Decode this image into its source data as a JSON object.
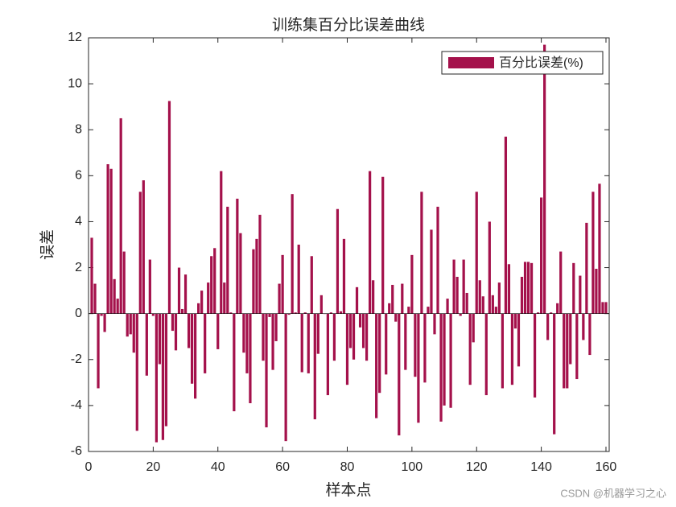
{
  "chart_data": {
    "type": "bar",
    "title": "训练集百分比误差曲线",
    "x_label": "样本点",
    "y_label": "误差",
    "watermark": "CSDN @机器学习之心",
    "series": [
      {
        "name": "百分比误差(%)",
        "color": "#a4114b",
        "values": [
          3.3,
          1.3,
          -3.25,
          -0.1,
          -0.8,
          6.5,
          6.3,
          1.5,
          0.65,
          8.5,
          2.7,
          -1.0,
          -0.9,
          -1.7,
          -5.1,
          5.3,
          5.8,
          -2.7,
          2.35,
          -0.1,
          -5.6,
          -2.2,
          -5.5,
          -4.9,
          9.25,
          -0.75,
          -1.6,
          2.0,
          0.2,
          1.7,
          -1.5,
          -3.05,
          -3.7,
          0.45,
          1.0,
          -2.6,
          1.35,
          2.5,
          2.85,
          -1.55,
          6.2,
          1.35,
          4.65,
          0.05,
          -4.25,
          5.0,
          3.5,
          -1.7,
          -2.6,
          -3.9,
          2.8,
          3.25,
          4.3,
          -2.05,
          -4.95,
          -0.15,
          -2.45,
          -1.2,
          1.3,
          2.55,
          -5.55,
          -0.05,
          5.2,
          0.05,
          3.0,
          -2.55,
          0.05,
          -2.6,
          2.5,
          -4.6,
          -1.75,
          0.8,
          0.0,
          -3.55,
          0.05,
          -2.05,
          4.55,
          0.1,
          3.25,
          -3.1,
          -1.5,
          -2.0,
          1.15,
          -0.6,
          -1.5,
          -2.05,
          6.2,
          1.45,
          -4.55,
          -3.45,
          5.95,
          -2.65,
          0.45,
          1.25,
          -0.35,
          -5.3,
          1.3,
          -2.45,
          0.3,
          2.55,
          -2.75,
          -4.75,
          5.3,
          -3.0,
          0.3,
          3.65,
          -0.9,
          4.65,
          -4.7,
          -4.0,
          0.65,
          -4.1,
          2.35,
          1.6,
          -0.1,
          2.35,
          0.9,
          -3.1,
          -1.25,
          5.3,
          1.45,
          0.75,
          -3.55,
          4.0,
          0.8,
          0.3,
          1.35,
          -3.25,
          7.7,
          2.15,
          -3.1,
          -0.65,
          -2.3,
          1.6,
          2.25,
          2.25,
          2.2,
          -3.65,
          0.05,
          5.05,
          11.7,
          -1.15,
          0.05,
          -5.25,
          0.45,
          2.7,
          -3.25,
          -3.25,
          -2.2,
          2.2,
          -2.85,
          1.65,
          -1.15,
          3.95,
          -1.8,
          5.3,
          1.95,
          5.65,
          0.5,
          0.5
        ]
      }
    ],
    "x": [
      1,
      2,
      3,
      4,
      5,
      6,
      7,
      8,
      9,
      10,
      11,
      12,
      13,
      14,
      15,
      16,
      17,
      18,
      19,
      20,
      21,
      22,
      23,
      24,
      25,
      26,
      27,
      28,
      29,
      30,
      31,
      32,
      33,
      34,
      35,
      36,
      37,
      38,
      39,
      40,
      41,
      42,
      43,
      44,
      45,
      46,
      47,
      48,
      49,
      50,
      51,
      52,
      53,
      54,
      55,
      56,
      57,
      58,
      59,
      60,
      61,
      62,
      63,
      64,
      65,
      66,
      67,
      68,
      69,
      70,
      71,
      72,
      73,
      74,
      75,
      76,
      77,
      78,
      79,
      80,
      81,
      82,
      83,
      84,
      85,
      86,
      87,
      88,
      89,
      90,
      91,
      92,
      93,
      94,
      95,
      96,
      97,
      98,
      99,
      100,
      101,
      102,
      103,
      104,
      105,
      106,
      107,
      108,
      109,
      110,
      111,
      112,
      113,
      114,
      115,
      116,
      117,
      118,
      119,
      120,
      121,
      122,
      123,
      124,
      125,
      126,
      127,
      128,
      129,
      130,
      131,
      132,
      133,
      134,
      135,
      136,
      137,
      138,
      139,
      140,
      141,
      142,
      143,
      144,
      145,
      146,
      147,
      148,
      149,
      150,
      151,
      152,
      153,
      154,
      155,
      156,
      157,
      158,
      159,
      160
    ],
    "xlim": [
      0,
      161
    ],
    "xticks": [
      0,
      20,
      40,
      60,
      80,
      100,
      120,
      140,
      160
    ],
    "ylim": [
      -6,
      12
    ],
    "yticks": [
      -6,
      -4,
      -2,
      0,
      2,
      4,
      6,
      8,
      10,
      12
    ],
    "legend": "upper right"
  }
}
